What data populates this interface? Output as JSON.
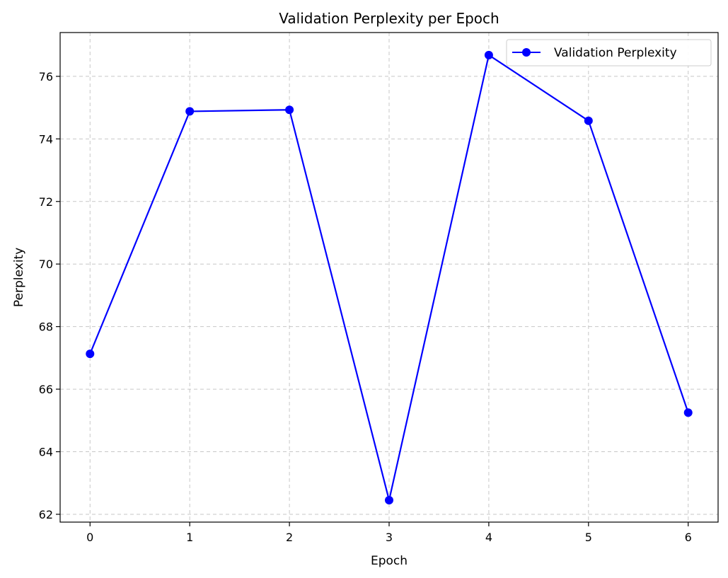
{
  "chart_data": {
    "type": "line",
    "title": "Validation Perplexity per Epoch",
    "xlabel": "Epoch",
    "ylabel": "Perplexity",
    "x": [
      0,
      1,
      2,
      3,
      4,
      5,
      6
    ],
    "series": [
      {
        "name": "Validation Perplexity",
        "values": [
          67.13,
          74.88,
          74.93,
          62.45,
          76.68,
          74.58,
          65.25
        ],
        "color": "#0000ff",
        "marker": "circle"
      }
    ],
    "xticks": [
      0,
      1,
      2,
      3,
      4,
      5,
      6
    ],
    "yticks": [
      62,
      64,
      66,
      68,
      70,
      72,
      74,
      76
    ],
    "xlim": [
      -0.3,
      6.3
    ],
    "ylim": [
      61.75,
      77.4
    ],
    "grid": true,
    "legend_position": "top-right"
  }
}
